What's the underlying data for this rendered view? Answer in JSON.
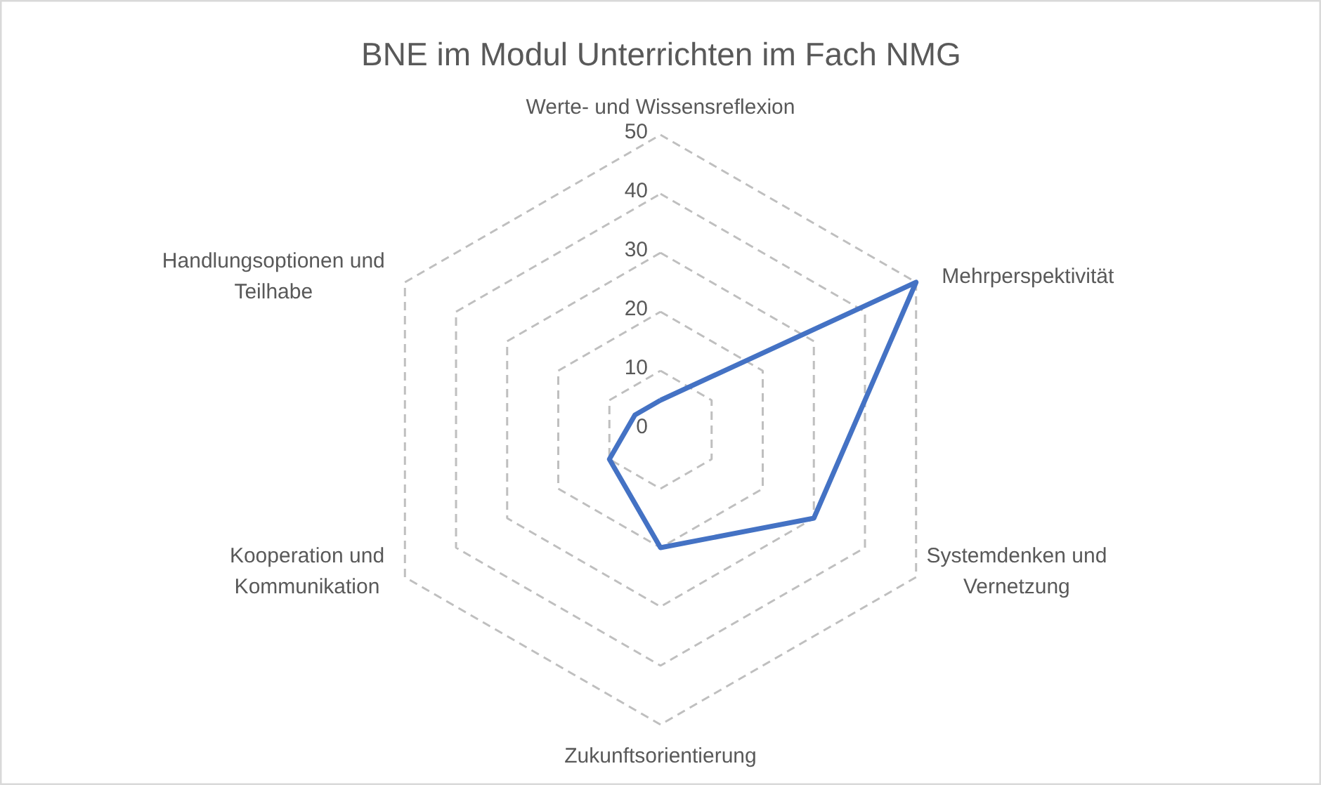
{
  "chart_data": {
    "type": "radar",
    "title": "BNE im Modul Unterrichten im Fach NMG",
    "categories": [
      "Werte- und Wissensreflexion",
      "Mehrperspektivität",
      "Systemdenken und Vernetzung",
      "Zukunftsorientierung",
      "Kooperation und Kommunikation",
      "Handlungsoptionen und Teilhabe"
    ],
    "series": [
      {
        "color": "#4472c4",
        "values": [
          5,
          50,
          30,
          20,
          10,
          5
        ]
      }
    ],
    "ylim": [
      0,
      50
    ],
    "yticks": [
      0,
      10,
      20,
      30,
      40,
      50
    ],
    "grid": true,
    "marker": "none",
    "line_style": "solid"
  }
}
